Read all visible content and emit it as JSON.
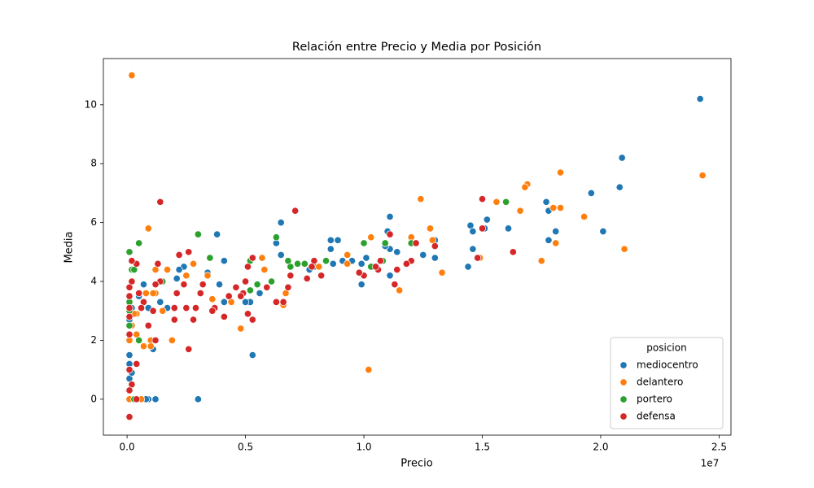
{
  "chart_data": {
    "type": "scatter",
    "title": "Relación entre Precio y Media por Posición",
    "x_label": "Precio",
    "y_label": "Media",
    "x_offset_label": "1e7",
    "xlim": [
      -1000000,
      25500000
    ],
    "ylim": [
      -1.22,
      11.57
    ],
    "xticks": [
      {
        "value": 0,
        "label": "0.0"
      },
      {
        "value": 5000000,
        "label": "0.5"
      },
      {
        "value": 10000000,
        "label": "1.0"
      },
      {
        "value": 15000000,
        "label": "1.5"
      },
      {
        "value": 20000000,
        "label": "2.0"
      },
      {
        "value": 25000000,
        "label": "2.5"
      }
    ],
    "yticks": [
      0,
      2,
      4,
      6,
      8,
      10
    ],
    "grid": false,
    "legend_title": "posicion",
    "legend_position": "lower-right",
    "series": [
      {
        "name": "mediocentro",
        "color": "#1f77b4",
        "x": [
          24200000,
          20900000,
          20800000,
          19600000,
          20100000,
          17700000,
          17800000,
          18100000,
          17800000,
          15200000,
          15100000,
          16100000,
          14500000,
          14600000,
          14600000,
          14400000,
          13000000,
          13000000,
          12500000,
          11100000,
          11000000,
          11100000,
          11400000,
          11100000,
          10400000,
          10100000,
          9900000,
          9900000,
          9500000,
          9100000,
          8900000,
          8600000,
          8600000,
          8700000,
          7900000,
          6500000,
          6300000,
          6500000,
          5300000,
          5200000,
          5000000,
          4100000,
          3900000,
          4100000,
          3800000,
          3000000,
          2400000,
          2200000,
          2100000,
          1200000,
          900000,
          800000,
          100000,
          100000,
          100000,
          100000,
          100000,
          200000,
          500000,
          700000,
          900000,
          1100000,
          1400000,
          1700000,
          3400000,
          5600000,
          7700000,
          10900000,
          100000,
          200000
        ],
        "values": [
          10.2,
          8.2,
          7.2,
          7.0,
          5.7,
          6.7,
          6.4,
          5.7,
          5.4,
          6.1,
          5.8,
          5.8,
          5.9,
          5.7,
          5.1,
          4.5,
          5.4,
          4.8,
          4.9,
          6.2,
          5.7,
          5.1,
          5.0,
          4.2,
          4.5,
          4.8,
          3.9,
          4.6,
          4.7,
          4.7,
          5.4,
          5.4,
          5.1,
          4.6,
          4.5,
          6.0,
          5.3,
          4.9,
          1.5,
          3.3,
          3.3,
          3.3,
          3.9,
          4.7,
          5.6,
          0,
          4.5,
          4.4,
          4.1,
          0,
          0,
          0,
          0,
          0.7,
          1.5,
          2.2,
          2.7,
          3.1,
          3.5,
          3.9,
          3.1,
          1.7,
          3.3,
          3.1,
          4.3,
          3.6,
          4.4,
          5.2,
          1.2,
          0.9
        ]
      },
      {
        "name": "delantero",
        "color": "#ff7f0e",
        "x": [
          200000,
          24300000,
          21000000,
          18300000,
          18300000,
          18000000,
          18100000,
          19300000,
          16900000,
          16800000,
          16600000,
          17500000,
          15600000,
          14900000,
          12400000,
          12800000,
          12900000,
          13300000,
          12000000,
          11500000,
          10300000,
          10200000,
          9300000,
          9300000,
          8100000,
          6600000,
          6700000,
          5800000,
          5700000,
          4800000,
          4400000,
          3600000,
          2800000,
          2500000,
          1900000,
          1700000,
          1200000,
          1200000,
          1100000,
          900000,
          1000000,
          1000000,
          700000,
          400000,
          400000,
          600000,
          100000,
          100000,
          200000,
          300000,
          800000,
          1500000,
          3400000
        ],
        "values": [
          11.0,
          7.6,
          5.1,
          7.7,
          6.5,
          6.5,
          5.3,
          6.2,
          7.3,
          7.2,
          6.4,
          4.7,
          6.7,
          4.8,
          6.8,
          5.8,
          5.4,
          4.3,
          5.5,
          3.7,
          5.5,
          1.0,
          4.6,
          4.9,
          4.5,
          3.2,
          3.6,
          4.4,
          4.8,
          2.4,
          3.3,
          3.4,
          4.6,
          4.2,
          2.0,
          4.4,
          4.4,
          3.6,
          3.6,
          5.8,
          2.0,
          1.8,
          1.8,
          2.9,
          2.2,
          0,
          0,
          2.0,
          2.5,
          2.9,
          3.6,
          3.0,
          4.2
        ]
      },
      {
        "name": "portero",
        "color": "#2ca02c",
        "x": [
          16000000,
          12000000,
          10900000,
          10800000,
          10300000,
          10000000,
          8400000,
          7500000,
          7200000,
          6900000,
          6800000,
          6300000,
          6100000,
          5500000,
          5200000,
          5200000,
          3500000,
          3000000,
          1500000,
          500000,
          100000,
          200000,
          100000,
          100000,
          100000,
          300000,
          300000,
          500000
        ],
        "values": [
          6.7,
          5.3,
          5.3,
          4.7,
          4.5,
          5.3,
          4.7,
          4.6,
          4.6,
          4.5,
          4.7,
          5.5,
          4.0,
          3.9,
          3.7,
          4.7,
          4.8,
          5.6,
          4.0,
          5.3,
          5.0,
          4.4,
          3.3,
          3.0,
          2.5,
          0,
          4.4,
          2.0
        ]
      },
      {
        "name": "defensa",
        "color": "#d62728",
        "x": [
          15000000,
          15000000,
          16300000,
          14800000,
          13000000,
          12200000,
          12000000,
          11800000,
          11400000,
          11300000,
          11100000,
          10700000,
          10600000,
          10500000,
          10000000,
          9800000,
          8200000,
          7900000,
          7800000,
          7600000,
          7100000,
          6900000,
          6800000,
          6600000,
          6300000,
          5900000,
          5300000,
          5300000,
          5100000,
          5100000,
          5000000,
          4900000,
          4800000,
          4600000,
          4300000,
          4100000,
          3700000,
          3600000,
          3200000,
          3100000,
          2900000,
          2800000,
          2600000,
          2600000,
          2500000,
          2400000,
          2200000,
          2100000,
          2000000,
          2000000,
          1400000,
          1400000,
          1300000,
          1200000,
          1100000,
          900000,
          700000,
          600000,
          500000,
          400000,
          400000,
          400000,
          200000,
          200000,
          100000,
          100000,
          100000,
          100000,
          100000,
          100000,
          200000,
          100000,
          100000,
          1200000
        ],
        "values": [
          6.8,
          5.8,
          5.0,
          4.8,
          5.2,
          5.3,
          4.7,
          4.6,
          4.4,
          3.9,
          5.6,
          4.7,
          4.4,
          4.5,
          4.2,
          4.3,
          4.2,
          4.7,
          4.5,
          4.1,
          6.4,
          4.2,
          3.8,
          3.3,
          3.3,
          3.8,
          2.7,
          4.8,
          2.9,
          4.5,
          4.0,
          3.6,
          3.5,
          3.8,
          3.5,
          2.8,
          3.1,
          3.0,
          3.9,
          3.6,
          3.1,
          2.7,
          5.0,
          1.7,
          3.1,
          3.9,
          4.9,
          3.6,
          2.7,
          3.1,
          6.7,
          4.0,
          4.6,
          2.0,
          3.0,
          2.5,
          3.3,
          3.1,
          3.6,
          4.6,
          1.2,
          0,
          4.7,
          4.0,
          3.8,
          3.5,
          3.1,
          2.8,
          2.2,
          1.0,
          0.5,
          0.3,
          -0.6,
          3.9
        ]
      }
    ]
  }
}
